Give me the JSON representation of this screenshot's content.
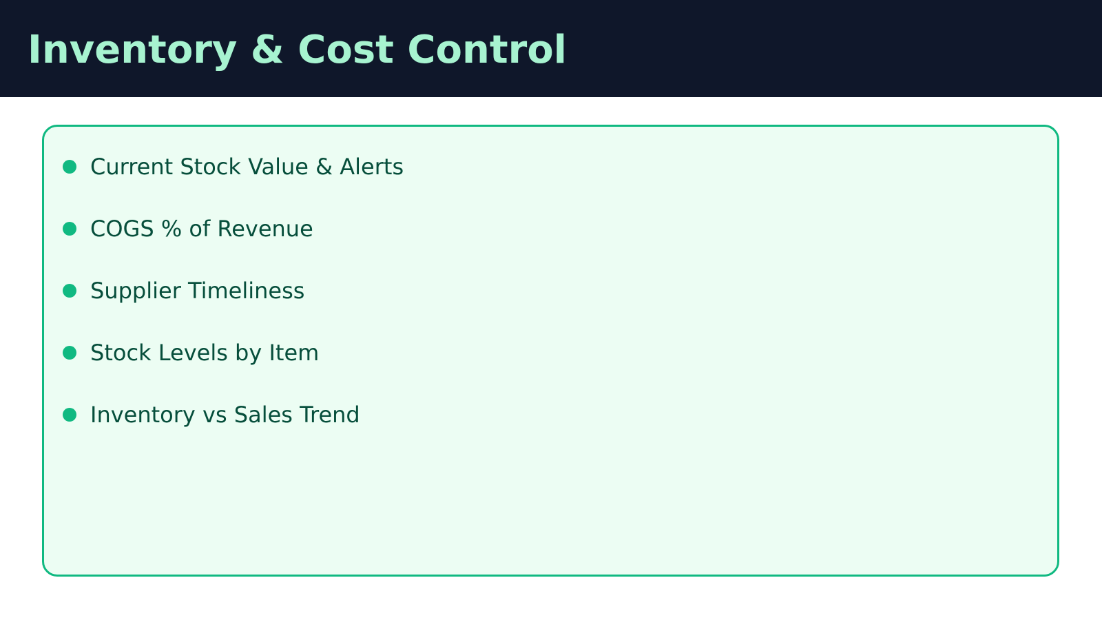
{
  "header": {
    "title": "Inventory & Cost Control"
  },
  "panel": {
    "items": [
      {
        "label": "Current Stock Value & Alerts"
      },
      {
        "label": "COGS % of Revenue"
      },
      {
        "label": "Supplier Timeliness"
      },
      {
        "label": "Stock Levels by Item"
      },
      {
        "label": "Inventory vs Sales Trend"
      }
    ]
  },
  "colors": {
    "header_bg": "#0f172a",
    "title": "#a7f3d0",
    "accent": "#10b981",
    "panel_bg": "#ecfdf3",
    "text": "#064e3b"
  }
}
